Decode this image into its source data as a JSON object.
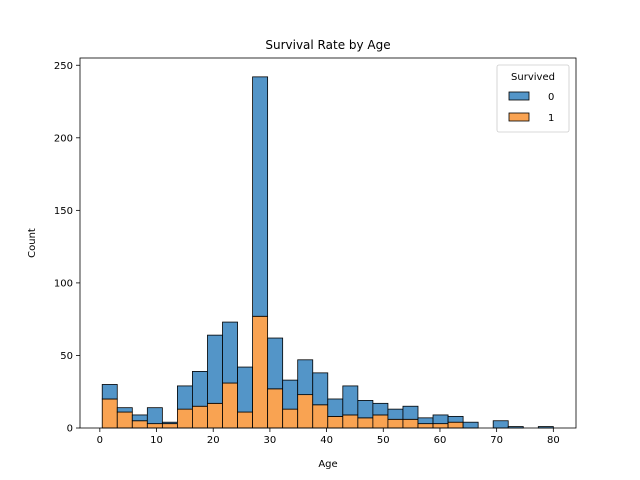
{
  "chart_data": {
    "type": "bar",
    "stacked": true,
    "title": "Survival Rate by Age",
    "xlabel": "Age",
    "ylabel": "Count",
    "xlim": [
      -3.5,
      84
    ],
    "ylim": [
      0,
      255
    ],
    "xticks": [
      0,
      10,
      20,
      30,
      40,
      50,
      60,
      70,
      80
    ],
    "yticks": [
      0,
      50,
      100,
      150,
      200,
      250
    ],
    "grid": false,
    "bin_start": 0.42,
    "bin_width": 2.6527,
    "bins": 30,
    "legend": {
      "title": "Survived",
      "placement": "top-right"
    },
    "series": [
      {
        "name": "0",
        "color": "#5395c8",
        "values": [
          10,
          3,
          4,
          11,
          1,
          16,
          24,
          47,
          42,
          31,
          165,
          35,
          20,
          24,
          22,
          12,
          20,
          12,
          8,
          7,
          9,
          4,
          6,
          4,
          4,
          0,
          5,
          1,
          0,
          1
        ]
      },
      {
        "name": "1",
        "color": "#f9a352",
        "values": [
          20,
          11,
          5,
          3,
          3,
          13,
          15,
          17,
          31,
          11,
          77,
          27,
          13,
          23,
          16,
          8,
          9,
          7,
          9,
          6,
          6,
          3,
          3,
          4,
          0,
          0,
          0,
          0,
          0,
          0
        ]
      }
    ]
  }
}
